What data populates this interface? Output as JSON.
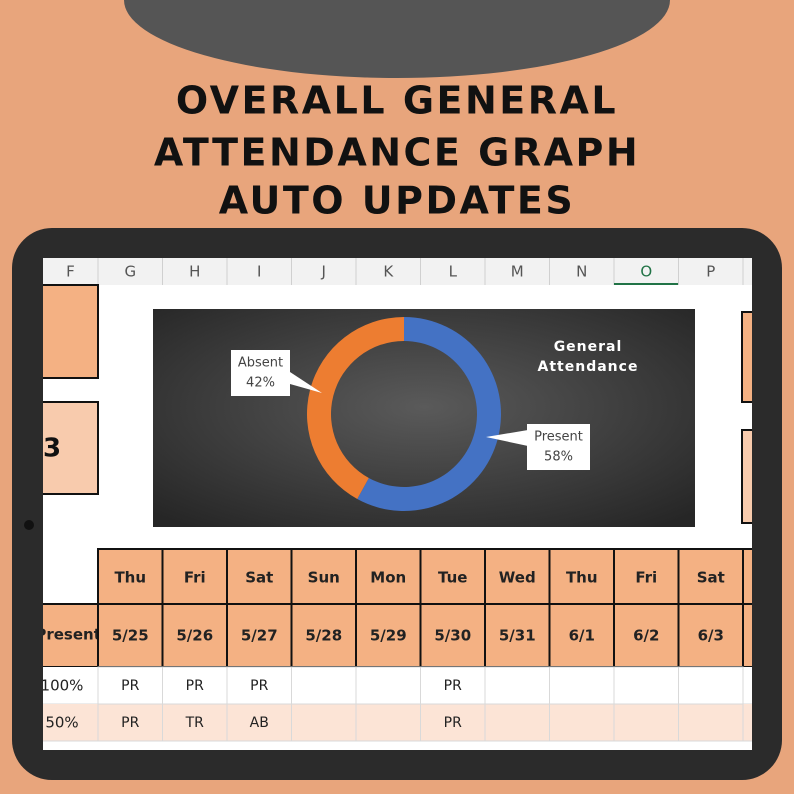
{
  "header": {
    "title_lines": [
      "OVERALL GENERAL",
      "ATTENDANCE GRAPH",
      "AUTO UPDATES"
    ]
  },
  "columns": [
    "F",
    "G",
    "H",
    "I",
    "J",
    "K",
    "L",
    "M",
    "N",
    "O",
    "P"
  ],
  "side_cell": "3",
  "chart_data": {
    "type": "pie",
    "title": "General Attendance",
    "categories": [
      "Present",
      "Absent"
    ],
    "values": [
      58,
      42
    ],
    "value_labels": [
      "58%",
      "42%"
    ],
    "colors": [
      "#4472c4",
      "#ed7d31"
    ],
    "donut": true
  },
  "table": {
    "row_header": "% Present",
    "days": [
      "Thu",
      "Fri",
      "Sat",
      "Sun",
      "Mon",
      "Tue",
      "Wed",
      "Thu",
      "Fri",
      "Sat"
    ],
    "dates": [
      "5/25",
      "5/26",
      "5/27",
      "5/28",
      "5/29",
      "5/30",
      "5/31",
      "6/1",
      "6/2",
      "6/3"
    ],
    "rows": [
      {
        "percent": "100%",
        "cells": [
          "PR",
          "PR",
          "PR",
          null,
          null,
          "PR",
          null,
          null,
          null,
          null
        ]
      },
      {
        "percent": "50%",
        "cells": [
          "PR",
          "TR",
          "AB",
          null,
          null,
          "PR",
          null,
          null,
          null,
          null
        ]
      }
    ]
  }
}
